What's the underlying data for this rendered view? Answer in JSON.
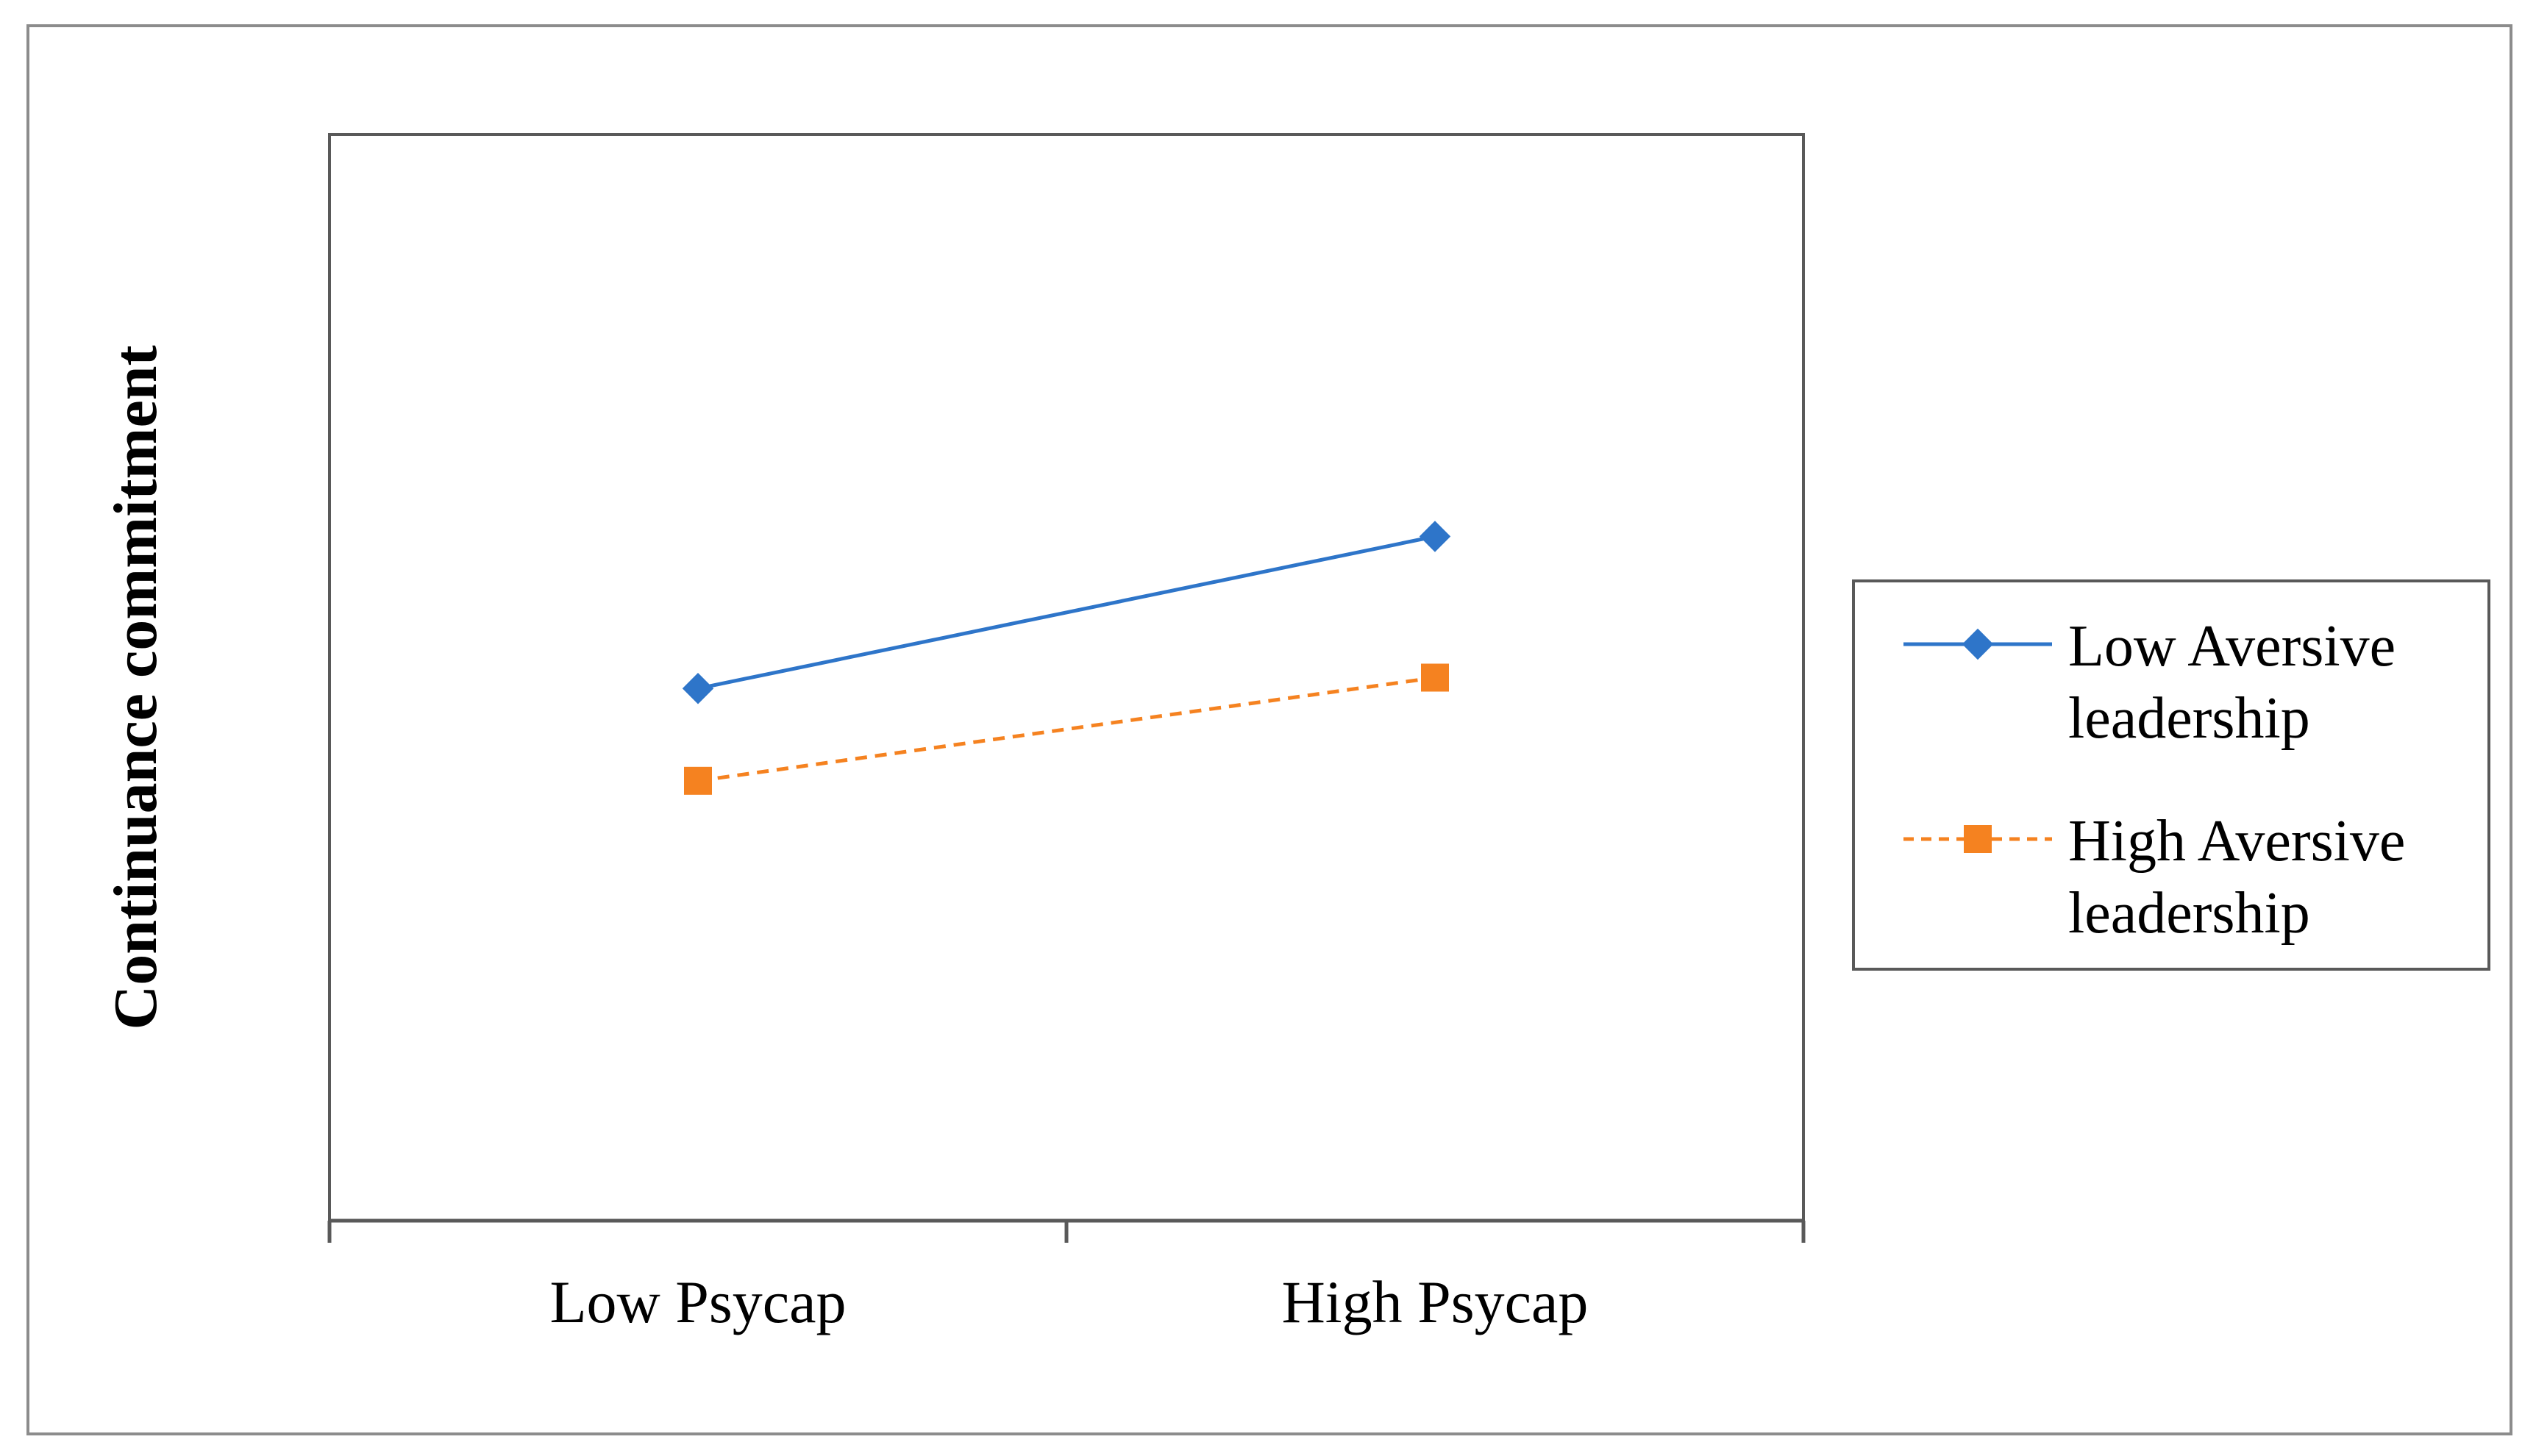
{
  "chart_data": {
    "type": "line",
    "title": "",
    "xlabel": "",
    "ylabel": "Continuance commitment",
    "categories": [
      "Low Psycap",
      "High Psycap"
    ],
    "ylim": [
      0,
      10
    ],
    "grid": false,
    "legend_position": "right",
    "series": [
      {
        "name_lines": [
          "Low Aversive",
          "leadership"
        ],
        "values": [
          4.9,
          6.3
        ],
        "color": "#2E75C9",
        "marker": "diamond",
        "dash": "solid"
      },
      {
        "name_lines": [
          "High Aversive",
          "leadership"
        ],
        "values": [
          4.05,
          5.0
        ],
        "color": "#F58220",
        "marker": "square",
        "dash": "dashed"
      }
    ]
  }
}
